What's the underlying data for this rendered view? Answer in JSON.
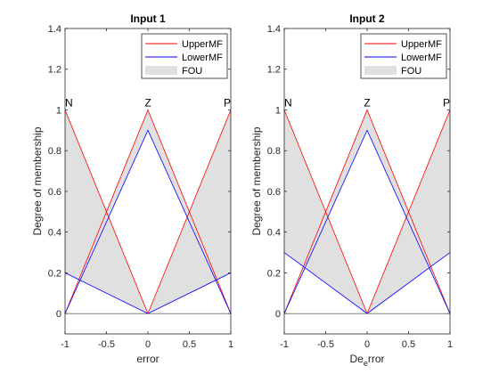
{
  "chart_data": [
    {
      "type": "line",
      "title": "Input 1",
      "xlabel": "error",
      "ylabel": "Degree of membership",
      "xlim": [
        -1,
        1
      ],
      "ylim": [
        -0.1,
        1.4
      ],
      "xticks": [
        "-1",
        "-0.5",
        "0",
        "0.5",
        "1"
      ],
      "yticks": [
        "0",
        "0.2",
        "0.4",
        "0.6",
        "0.8",
        "1",
        "1.2",
        "1.4"
      ],
      "mf_labels": [
        {
          "text": "N",
          "x": -1
        },
        {
          "text": "Z",
          "x": 0
        },
        {
          "text": "P",
          "x": 1
        }
      ],
      "legend": {
        "position": "top-right",
        "entries": [
          "UpperMF",
          "LowerMF",
          "FOU"
        ]
      },
      "series": [
        {
          "name": "UpperMF",
          "color": "#ff0000",
          "lines": [
            [
              [
                -1,
                1
              ],
              [
                0,
                0
              ]
            ],
            [
              [
                -1,
                0
              ],
              [
                0,
                1
              ],
              [
                1,
                0
              ]
            ],
            [
              [
                0,
                0
              ],
              [
                1,
                1
              ]
            ]
          ]
        },
        {
          "name": "LowerMF",
          "color": "#0000ff",
          "lines": [
            [
              [
                -1,
                0.2
              ],
              [
                0,
                0
              ]
            ],
            [
              [
                -1,
                0
              ],
              [
                0,
                0.9
              ],
              [
                1,
                0
              ]
            ],
            [
              [
                0,
                0
              ],
              [
                1,
                0.2
              ]
            ]
          ]
        }
      ]
    },
    {
      "type": "line",
      "title": "Input 2",
      "xlabel": "De",
      "xlabel_sub": "e",
      "xlabel_rest": "rror",
      "ylabel": "Degree of membership",
      "xlim": [
        -1,
        1
      ],
      "ylim": [
        -0.1,
        1.4
      ],
      "xticks": [
        "-1",
        "-0.5",
        "0",
        "0.5",
        "1"
      ],
      "yticks": [
        "0",
        "0.2",
        "0.4",
        "0.6",
        "0.8",
        "1",
        "1.2",
        "1.4"
      ],
      "mf_labels": [
        {
          "text": "N",
          "x": -1
        },
        {
          "text": "Z",
          "x": 0
        },
        {
          "text": "P",
          "x": 1
        }
      ],
      "legend": {
        "position": "top-right",
        "entries": [
          "UpperMF",
          "LowerMF",
          "FOU"
        ]
      },
      "series": [
        {
          "name": "UpperMF",
          "color": "#ff0000",
          "lines": [
            [
              [
                -1,
                1
              ],
              [
                0,
                0
              ]
            ],
            [
              [
                -1,
                0
              ],
              [
                0,
                1
              ],
              [
                1,
                0
              ]
            ],
            [
              [
                0,
                0
              ],
              [
                1,
                1
              ]
            ]
          ]
        },
        {
          "name": "LowerMF",
          "color": "#0000ff",
          "lines": [
            [
              [
                -1,
                0.3
              ],
              [
                0,
                0
              ]
            ],
            [
              [
                -1,
                0
              ],
              [
                0,
                0.9
              ],
              [
                1,
                0
              ]
            ],
            [
              [
                0,
                0
              ],
              [
                1,
                0.3
              ]
            ]
          ]
        }
      ]
    }
  ],
  "colors": {
    "fou": "#e0e0e0",
    "axis": "#262626",
    "baseline": "#000000"
  }
}
